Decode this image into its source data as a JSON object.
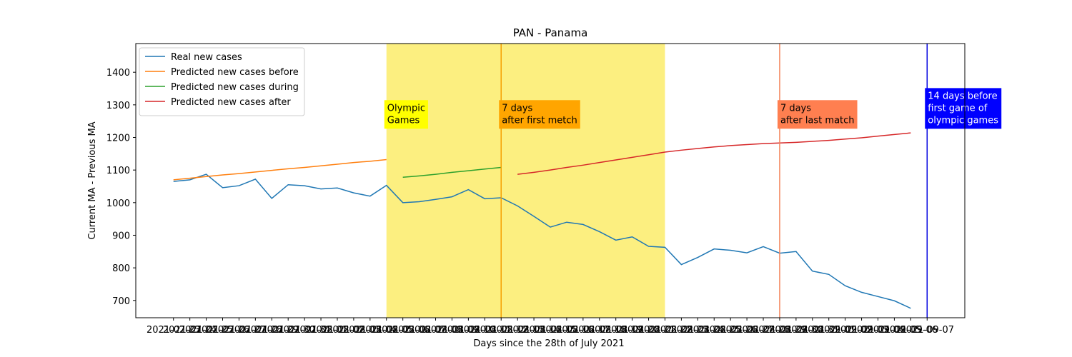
{
  "chart_data": {
    "type": "line",
    "title": "PAN - Panama",
    "xlabel": "Days since the 28th of July 2021",
    "ylabel": "Current MA - Previous MA",
    "categories": [
      "2021-07-23",
      "2021-07-24",
      "2021-07-25",
      "2021-07-26",
      "2021-07-27",
      "2021-07-28",
      "2021-07-29",
      "2021-07-30",
      "2021-07-31",
      "2021-08-01",
      "2021-08-02",
      "2021-08-03",
      "2021-08-04",
      "2021-08-05",
      "2021-08-06",
      "2021-08-07",
      "2021-08-08",
      "2021-08-09",
      "2021-08-10",
      "2021-08-11",
      "2021-08-12",
      "2021-08-13",
      "2021-08-14",
      "2021-08-15",
      "2021-08-16",
      "2021-08-17",
      "2021-08-18",
      "2021-08-19",
      "2021-08-20",
      "2021-08-21",
      "2021-08-22",
      "2021-08-23",
      "2021-08-24",
      "2021-08-25",
      "2021-08-26",
      "2021-08-27",
      "2021-08-28",
      "2021-08-29",
      "2021-08-30",
      "2021-08-31",
      "2021-09-01",
      "2021-09-02",
      "2021-09-03",
      "2021-09-04",
      "2021-09-05",
      "2021-09-06",
      "2021-09-07"
    ],
    "series": [
      {
        "name": "Real new cases",
        "color": "#1f77b4",
        "values": [
          1065,
          1070,
          1087,
          1046,
          1052,
          1072,
          1013,
          1055,
          1052,
          1042,
          1045,
          1030,
          1020,
          1053,
          1000,
          1003,
          1010,
          1018,
          1040,
          1012,
          1015,
          990,
          958,
          925,
          940,
          933,
          911,
          885,
          895,
          866,
          863,
          810,
          832,
          858,
          854,
          846,
          865,
          845,
          850,
          790,
          780,
          745,
          725,
          712,
          699,
          676,
          null
        ]
      },
      {
        "name": "Predicted new cases before",
        "color": "#ff7f0e",
        "values": [
          1070,
          1075,
          1080,
          1085,
          1089,
          1094,
          1099,
          1104,
          1108,
          1113,
          1118,
          1123,
          1127,
          1132,
          null,
          null,
          null,
          null,
          null,
          null,
          null,
          null,
          null,
          null,
          null,
          null,
          null,
          null,
          null,
          null,
          null,
          null,
          null,
          null,
          null,
          null,
          null,
          null,
          null,
          null,
          null,
          null,
          null,
          null,
          null,
          null,
          null
        ]
      },
      {
        "name": "Predicted new cases during",
        "color": "#2ca02c",
        "values": [
          null,
          null,
          null,
          null,
          null,
          null,
          null,
          null,
          null,
          null,
          null,
          null,
          null,
          null,
          1078,
          1082,
          1087,
          1093,
          1098,
          1103,
          1108,
          null,
          null,
          null,
          null,
          null,
          null,
          null,
          null,
          null,
          null,
          null,
          null,
          null,
          null,
          null,
          null,
          null,
          null,
          null,
          null,
          null,
          null,
          null,
          null,
          null,
          null
        ]
      },
      {
        "name": "Predicted new cases after",
        "color": "#d62728",
        "values": [
          null,
          null,
          null,
          null,
          null,
          null,
          null,
          null,
          null,
          null,
          null,
          null,
          null,
          null,
          null,
          null,
          null,
          null,
          null,
          null,
          null,
          1087,
          1093,
          1100,
          1108,
          1115,
          1123,
          1131,
          1139,
          1147,
          1155,
          1161,
          1166,
          1171,
          1175,
          1178,
          1181,
          1183,
          1185,
          1188,
          1191,
          1195,
          1199,
          1204,
          1209,
          1214,
          null
        ]
      }
    ],
    "ylim": [
      647,
      1488
    ],
    "yticks": [
      700,
      800,
      900,
      1000,
      1100,
      1200,
      1300,
      1400
    ],
    "legend": "upper left",
    "spans": [
      {
        "from": "2021-08-05",
        "to": "2021-08-22",
        "color": "#fcef80"
      }
    ],
    "vlines": [
      {
        "x": "2021-08-12",
        "color": "#f5a000"
      },
      {
        "x": "2021-08-29",
        "color": "#f4845a"
      },
      {
        "x": "2021-09-07",
        "color": "#0000e0"
      }
    ],
    "annotations": [
      {
        "x": "2021-08-05",
        "y": 1310,
        "text": [
          "Olympic",
          "Games"
        ],
        "background": "#ffff00",
        "color": "#000000"
      },
      {
        "x": "2021-08-12",
        "y": 1310,
        "text": [
          "7 days",
          "after first metch"
        ],
        "background": "#ffa500",
        "color": "#000000"
      },
      {
        "x": "2021-08-29",
        "y": 1310,
        "text": [
          "7 days",
          "after last match"
        ],
        "background": "#ff7f50",
        "color": "#000000"
      },
      {
        "x": "2021-09-07",
        "y": 1347,
        "text": [
          "14 days before",
          "first game of",
          "olympic games"
        ],
        "background": "#0000ff",
        "color": "#ffffff"
      }
    ]
  }
}
